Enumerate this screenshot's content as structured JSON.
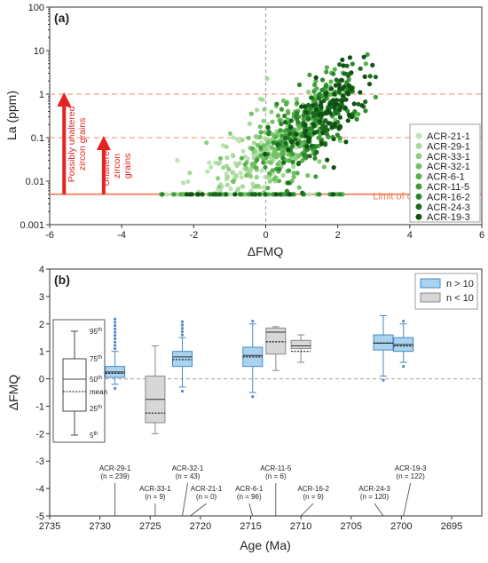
{
  "chart_data": [
    {
      "panel_label": "(a)",
      "type": "scatter",
      "xlabel": "ΔFMQ",
      "ylabel": "La (ppm)",
      "x_scale": "linear",
      "y_scale": "log",
      "xlim": [
        -6,
        6
      ],
      "ylim": [
        0.001,
        100
      ],
      "x_ticks": [
        -6,
        -4,
        -2,
        0,
        2,
        4,
        6
      ],
      "y_ticks": [
        0.001,
        0.01,
        0.1,
        1,
        10,
        100
      ],
      "y_tick_labels": [
        "0.001",
        "0.01",
        "0.1",
        "1",
        "10",
        "100"
      ],
      "reference_lines": [
        {
          "orientation": "horizontal",
          "y": 1,
          "style": "dashed",
          "color": "#f4a58a"
        },
        {
          "orientation": "horizontal",
          "y": 0.1,
          "style": "dashed",
          "color": "#f4a58a"
        },
        {
          "orientation": "horizontal",
          "y": 0.005,
          "style": "solid",
          "color": "#f08c6e"
        },
        {
          "orientation": "vertical",
          "x": 0,
          "style": "dashed",
          "color": "#aaaaaa"
        }
      ],
      "annotations": [
        {
          "text": "Limit of detection",
          "x": 4.0,
          "y": 0.0038,
          "color": "#ee7d52"
        },
        {
          "text_lines": [
            "Possibly unaltered",
            "zircon grains"
          ],
          "arrow_x": -5.6,
          "arrow_from": 0.005,
          "arrow_to": 1,
          "color": "#e62222"
        },
        {
          "text_lines": [
            "Unaltered",
            "zircon",
            "grains"
          ],
          "arrow_x": -4.5,
          "arrow_from": 0.005,
          "arrow_to": 0.1,
          "color": "#e62222"
        }
      ],
      "legend_position": "right",
      "series": [
        {
          "name": "ACR-21-1",
          "color": "#bde3b4"
        },
        {
          "name": "ACR-29-1",
          "color": "#a6d99a"
        },
        {
          "name": "ACR-33-1",
          "color": "#8ecf80"
        },
        {
          "name": "ACR-32-1",
          "color": "#74c266"
        },
        {
          "name": "ACR-6-1",
          "color": "#58b14d"
        },
        {
          "name": "ACR-11-5",
          "color": "#3e9c3a"
        },
        {
          "name": "ACR-16-2",
          "color": "#2b872b"
        },
        {
          "name": "ACR-24-3",
          "color": "#1b6b1f"
        },
        {
          "name": "ACR-19-3",
          "color": "#0f5214"
        }
      ]
    },
    {
      "panel_label": "(b)",
      "type": "box",
      "xlabel": "Age (Ma)",
      "ylabel": "ΔFMQ",
      "x_reversed": true,
      "xlim": [
        2735,
        2692
      ],
      "ylim": [
        -5,
        4
      ],
      "x_ticks": [
        2735,
        2730,
        2725,
        2720,
        2715,
        2710,
        2705,
        2700,
        2695
      ],
      "y_ticks": [
        -5,
        -4,
        -3,
        -2,
        -1,
        0,
        1,
        2,
        3,
        4
      ],
      "reference_lines": [
        {
          "orientation": "horizontal",
          "y": 0,
          "style": "dashed",
          "color": "#aaaaaa"
        }
      ],
      "legend": [
        {
          "label": "n > 10",
          "color": "#a9d3ee"
        },
        {
          "label": "n < 10",
          "color": "#d7d7d7"
        }
      ],
      "key_labels": [
        "95th",
        "75th",
        "50th",
        "25th",
        "5th",
        "mean"
      ],
      "samples": [
        {
          "name": "ACR-29-1",
          "n_text": "(n = 239)",
          "age": 2728.5,
          "group": "n > 10",
          "p5": -0.2,
          "q1": 0.05,
          "median": 0.25,
          "q3": 0.45,
          "p95": 1.0,
          "mean": 0.2
        },
        {
          "name": "ACR-33-1",
          "n_text": "(n = 9)",
          "age": 2724.5,
          "group": "n < 10",
          "p5": -2.0,
          "q1": -1.6,
          "median": -0.75,
          "q3": 0.1,
          "p95": 1.2,
          "mean": -1.25
        },
        {
          "name": "ACR-32-1",
          "n_text": "(n = 43)",
          "age": 2721.8,
          "group": "n > 10",
          "p5": -0.3,
          "q1": 0.45,
          "median": 0.8,
          "q3": 1.0,
          "p95": 1.5,
          "mean": 0.7
        },
        {
          "name": "ACR-21-1",
          "n_text": "(n = 0)",
          "age": 2721.0,
          "group": "none"
        },
        {
          "name": "ACR-6-1",
          "n_text": "(n = 96)",
          "age": 2714.8,
          "group": "n > 10",
          "p5": -0.5,
          "q1": 0.45,
          "median": 0.85,
          "q3": 1.15,
          "p95": 2.0,
          "mean": 0.8
        },
        {
          "name": "ACR-11-5",
          "n_text": "(n = 6)",
          "age": 2712.5,
          "group": "n < 10",
          "p5": 0.3,
          "q1": 0.9,
          "median": 1.7,
          "q3": 1.85,
          "p95": 1.9,
          "mean": 1.35
        },
        {
          "name": "ACR-16-2",
          "n_text": "(n = 9)",
          "age": 2710.0,
          "group": "n < 10",
          "p5": 0.6,
          "q1": 1.1,
          "median": 1.2,
          "q3": 1.4,
          "p95": 1.6,
          "mean": 1.0
        },
        {
          "name": "ACR-24-3",
          "n_text": "(n = 120)",
          "age": 2701.8,
          "group": "n > 10",
          "p5": 0.1,
          "q1": 1.05,
          "median": 1.3,
          "q3": 1.6,
          "p95": 2.3,
          "mean": 1.3
        },
        {
          "name": "ACR-19-3",
          "n_text": "(n = 122)",
          "age": 2699.8,
          "group": "n > 10",
          "p5": 0.6,
          "q1": 1.0,
          "median": 1.25,
          "q3": 1.5,
          "p95": 2.0,
          "mean": 1.2
        }
      ]
    }
  ]
}
